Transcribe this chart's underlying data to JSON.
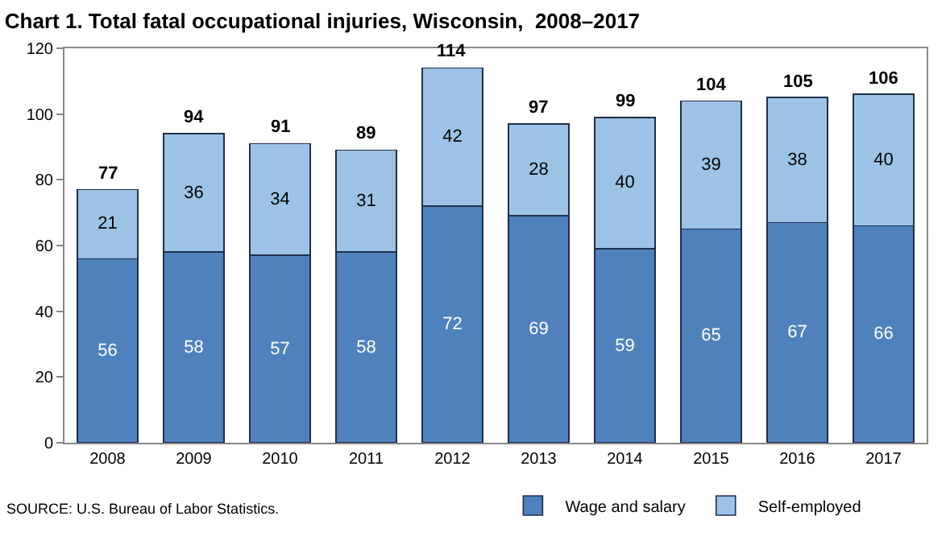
{
  "chart_data": {
    "type": "bar",
    "title": "Chart 1. Total fatal occupational injuries, Wisconsin,  2008–2017",
    "categories": [
      "2008",
      "2009",
      "2010",
      "2011",
      "2012",
      "2013",
      "2014",
      "2015",
      "2016",
      "2017"
    ],
    "series": [
      {
        "name": "Wage and salary",
        "color": "#4f81bd",
        "values": [
          56,
          58,
          57,
          58,
          72,
          69,
          59,
          65,
          67,
          66
        ]
      },
      {
        "name": "Self-employed",
        "color": "#9cc3e6",
        "values": [
          21,
          36,
          34,
          31,
          42,
          28,
          40,
          39,
          38,
          40
        ]
      }
    ],
    "stacked": true,
    "data_labels": true,
    "totals": [
      "77",
      "94",
      "91",
      "89",
      "114",
      "97",
      "99",
      "104",
      "105",
      "106"
    ],
    "ylim": [
      0,
      120
    ],
    "yticks": [
      0,
      20,
      40,
      60,
      80,
      100,
      120
    ],
    "grid": false,
    "legend": "bottom",
    "annotations": [
      "SOURCE: U.S. Bureau of Labor Statistics."
    ]
  }
}
